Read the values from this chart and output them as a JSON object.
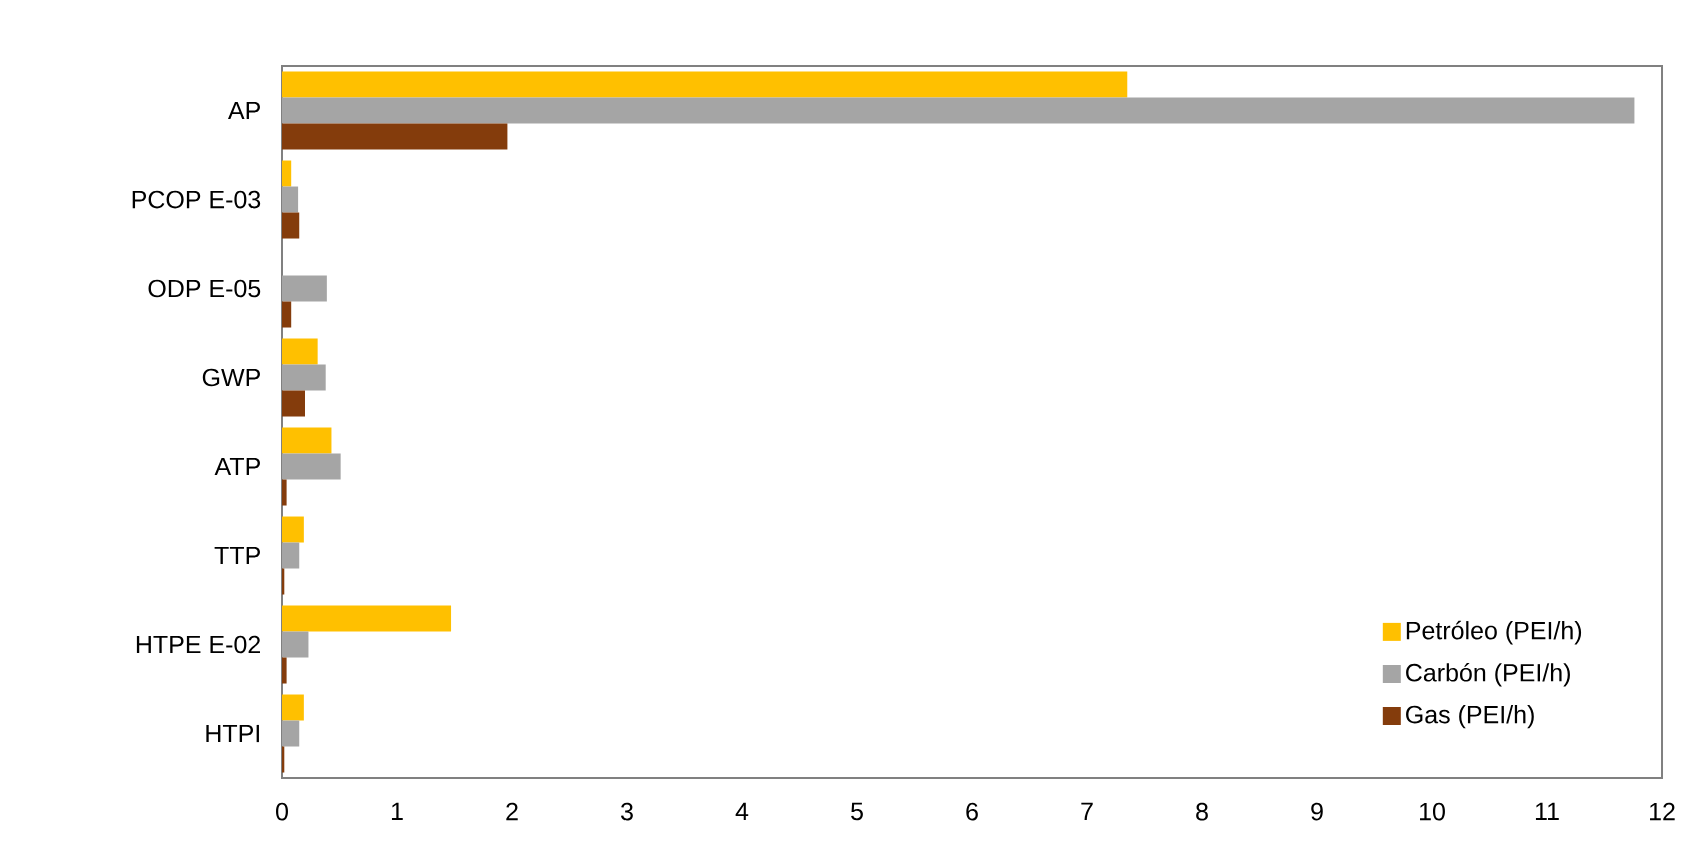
{
  "chart_data": {
    "type": "bar",
    "orientation": "horizontal",
    "categories": [
      "AP",
      "PCOP E-03",
      "ODP E-05",
      "GWP",
      "ATP",
      "TTP",
      "HTPE E-02",
      "HTPI"
    ],
    "series": [
      {
        "name": "Petróleo (PEI/h)",
        "color": "#ffc000",
        "values": [
          7.35,
          0.08,
          0,
          0.31,
          0.43,
          0.19,
          1.47,
          0.19
        ]
      },
      {
        "name": "Carbón (PEI/h)",
        "color": "#a5a5a5",
        "values": [
          11.76,
          0.14,
          0.39,
          0.38,
          0.51,
          0.15,
          0.23,
          0.15
        ]
      },
      {
        "name": "Gas (PEI/h)",
        "color": "#843c0c",
        "values": [
          1.96,
          0.15,
          0.08,
          0.2,
          0.04,
          0.02,
          0.04,
          0.02
        ]
      }
    ],
    "xlim": [
      0,
      12
    ],
    "xticks": [
      0,
      1,
      2,
      3,
      4,
      5,
      6,
      7,
      8,
      9,
      10,
      11,
      12
    ],
    "grid": false,
    "legend": "bottom right"
  }
}
